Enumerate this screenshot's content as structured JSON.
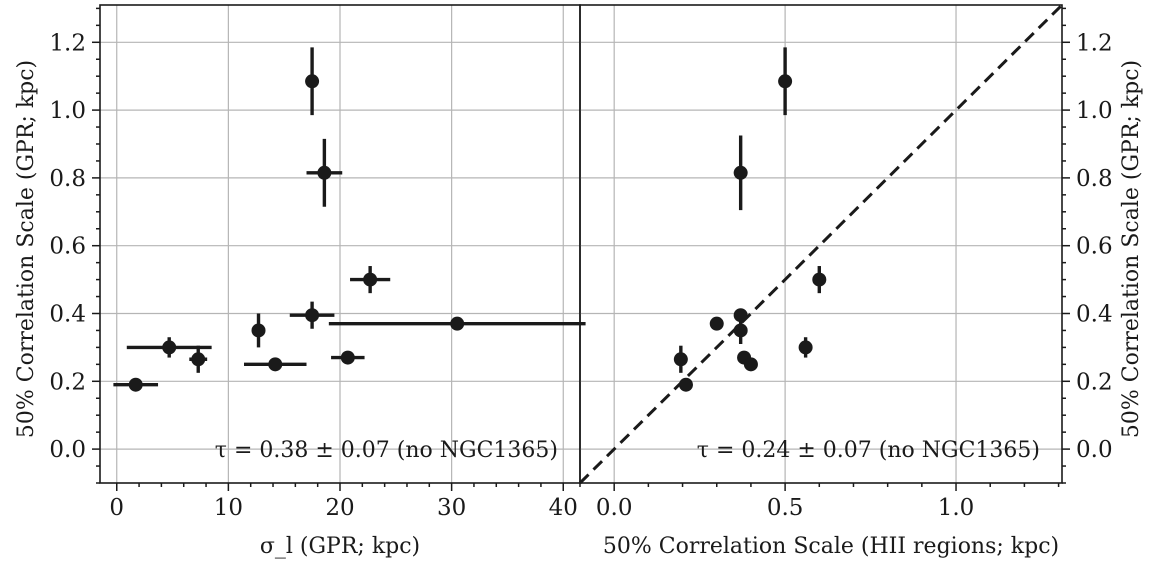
{
  "chart_data": [
    {
      "type": "scatter",
      "panel": "left",
      "xlabel": "σ_l (GPR; kpc)",
      "ylabel": "50% Correlation Scale (GPR; kpc)",
      "xlim": [
        -1.5,
        41.5
      ],
      "ylim": [
        -0.1,
        1.31
      ],
      "xticks": [
        0,
        10,
        20,
        30,
        40
      ],
      "yticks": [
        0.0,
        0.2,
        0.4,
        0.6,
        0.8,
        1.0,
        1.2
      ],
      "xtick_labels": [
        "0",
        "10",
        "20",
        "30",
        "40"
      ],
      "ytick_labels": [
        "0.0",
        "0.2",
        "0.4",
        "0.6",
        "0.8",
        "1.0",
        "1.2"
      ],
      "grid": true,
      "annotation": "τ = 0.38 ± 0.07 (no NGC1365)",
      "points": [
        {
          "x": 1.7,
          "y": 0.19,
          "xerr": 2.0,
          "yerr": 0.0
        },
        {
          "x": 4.7,
          "y": 0.3,
          "xerr": 3.8,
          "yerr": 0.03
        },
        {
          "x": 7.3,
          "y": 0.265,
          "xerr": 0.8,
          "yerr": 0.04
        },
        {
          "x": 12.7,
          "y": 0.35,
          "xerr": 0.3,
          "yerr": 0.05
        },
        {
          "x": 14.2,
          "y": 0.25,
          "xerr": 2.8,
          "yerr": 0.0
        },
        {
          "x": 17.5,
          "y": 1.085,
          "xerr": 0.3,
          "yerr": 0.1
        },
        {
          "x": 17.5,
          "y": 0.395,
          "xerr": 2.0,
          "yerr": 0.04
        },
        {
          "x": 18.6,
          "y": 0.815,
          "xerr": 1.6,
          "yerr": 0.1
        },
        {
          "x": 20.7,
          "y": 0.27,
          "xerr": 1.5,
          "yerr": 0.0
        },
        {
          "x": 22.7,
          "y": 0.5,
          "xerr": 1.8,
          "yerr": 0.04
        },
        {
          "x": 30.5,
          "y": 0.37,
          "xerr": 11.5,
          "yerr": 0.0
        }
      ]
    },
    {
      "type": "scatter",
      "panel": "right",
      "xlabel": "50% Correlation Scale (HII regions; kpc)",
      "ylabel": "50% Correlation Scale (GPR; kpc)",
      "xlim": [
        -0.1,
        1.31
      ],
      "ylim": [
        -0.1,
        1.31
      ],
      "xticks": [
        0.0,
        0.5,
        1.0
      ],
      "yticks": [
        0.0,
        0.2,
        0.4,
        0.6,
        0.8,
        1.0,
        1.2
      ],
      "xtick_labels": [
        "0.0",
        "0.5",
        "1.0"
      ],
      "ytick_labels": [
        "0.0",
        "0.2",
        "0.4",
        "0.6",
        "0.8",
        "1.0",
        "1.2"
      ],
      "grid": true,
      "one_to_one_line": true,
      "annotation": "τ = 0.24 ± 0.07 (no NGC1365)",
      "points": [
        {
          "x": 0.195,
          "y": 0.265,
          "xerr": 0.0,
          "yerr": 0.04
        },
        {
          "x": 0.21,
          "y": 0.19,
          "xerr": 0.0,
          "yerr": 0.0
        },
        {
          "x": 0.3,
          "y": 0.37,
          "xerr": 0.01,
          "yerr": 0.01
        },
        {
          "x": 0.37,
          "y": 0.395,
          "xerr": 0.0,
          "yerr": 0.0
        },
        {
          "x": 0.37,
          "y": 0.35,
          "xerr": 0.0,
          "yerr": 0.04
        },
        {
          "x": 0.37,
          "y": 0.815,
          "xerr": 0.0,
          "yerr": 0.11
        },
        {
          "x": 0.38,
          "y": 0.27,
          "xerr": 0.0,
          "yerr": 0.0
        },
        {
          "x": 0.4,
          "y": 0.25,
          "xerr": 0.0,
          "yerr": 0.0
        },
        {
          "x": 0.5,
          "y": 1.085,
          "xerr": 0.0,
          "yerr": 0.1
        },
        {
          "x": 0.56,
          "y": 0.3,
          "xerr": 0.0,
          "yerr": 0.03
        },
        {
          "x": 0.6,
          "y": 0.5,
          "xerr": 0.0,
          "yerr": 0.04
        }
      ]
    }
  ]
}
